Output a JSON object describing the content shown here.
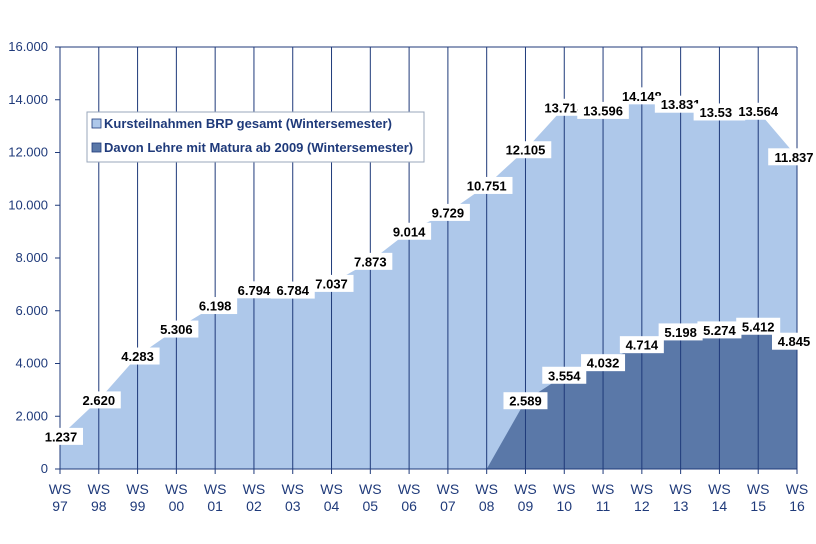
{
  "chart_data": {
    "type": "area",
    "categories": [
      [
        "WS",
        "97"
      ],
      [
        "WS",
        "98"
      ],
      [
        "WS",
        "99"
      ],
      [
        "WS",
        "00"
      ],
      [
        "WS",
        "01"
      ],
      [
        "WS",
        "02"
      ],
      [
        "WS",
        "03"
      ],
      [
        "WS",
        "04"
      ],
      [
        "WS",
        "05"
      ],
      [
        "WS",
        "06"
      ],
      [
        "WS",
        "07"
      ],
      [
        "WS",
        "08"
      ],
      [
        "WS",
        "09"
      ],
      [
        "WS",
        "10"
      ],
      [
        "WS",
        "11"
      ],
      [
        "WS",
        "12"
      ],
      [
        "WS",
        "13"
      ],
      [
        "WS",
        "14"
      ],
      [
        "WS",
        "15"
      ],
      [
        "WS",
        "16"
      ]
    ],
    "series": [
      {
        "name": "Kursteilnahmen BRP gesamt (Wintersemester)",
        "color": "#aec8ea",
        "values": [
          1237,
          2620,
          4283,
          5306,
          6198,
          6794,
          6784,
          7037,
          7873,
          9014,
          9729,
          10751,
          12105,
          13714,
          13596,
          14148,
          13831,
          13537,
          13564,
          11837
        ],
        "labels": [
          "1.237",
          "2.620",
          "4.283",
          "5.306",
          "6.198",
          "6.794",
          "6.784",
          "7.037",
          "7.873",
          "9.014",
          "9.729",
          "10.751",
          "12.105",
          "13.714",
          "13.596",
          "14.148",
          "13.831",
          "13.537",
          "13.564",
          "11.837"
        ]
      },
      {
        "name": "Davon Lehre mit Matura ab 2009 (Wintersemester)",
        "color": "#5a78a8",
        "values": [
          null,
          null,
          null,
          null,
          null,
          null,
          null,
          null,
          null,
          null,
          null,
          0,
          2589,
          3554,
          4032,
          4714,
          5198,
          5274,
          5412,
          4845
        ],
        "labels": [
          null,
          null,
          null,
          null,
          null,
          null,
          null,
          null,
          null,
          null,
          null,
          null,
          "2.589",
          "3.554",
          "4.032",
          "4.714",
          "5.198",
          "5.274",
          "5.412",
          "4.845"
        ]
      }
    ],
    "ylim": [
      0,
      16000
    ],
    "yticks": [
      0,
      2000,
      4000,
      6000,
      8000,
      10000,
      12000,
      14000,
      16000
    ],
    "ytick_labels": [
      "0",
      "2.000",
      "4.000",
      "6.000",
      "8.000",
      "10.000",
      "12.000",
      "14.000",
      "16.000"
    ],
    "grid": "vertical",
    "legend_position": "top-left",
    "title": "",
    "xlabel": "",
    "ylabel": ""
  }
}
